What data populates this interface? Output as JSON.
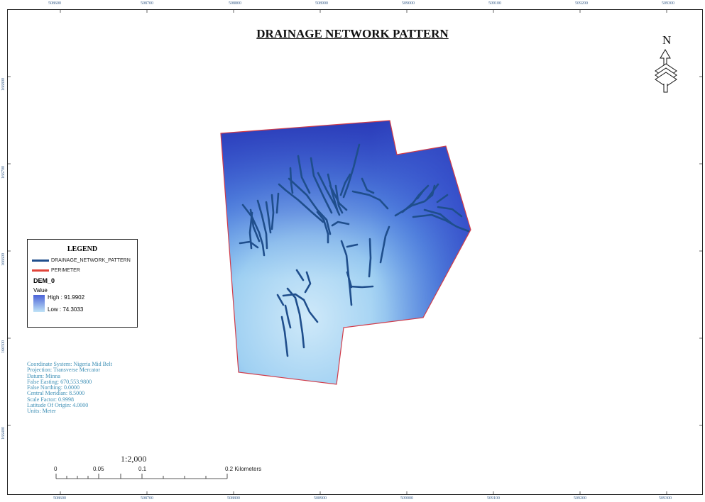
{
  "title": "DRAINAGE NETWORK PATTERN",
  "grid": {
    "top_labels": [
      "508600",
      "508700",
      "508800",
      "508900",
      "509000",
      "509100",
      "509200",
      "509300"
    ],
    "bottom_labels": [
      "508600",
      "508700",
      "508800",
      "508900",
      "509000",
      "509100",
      "509200",
      "509300"
    ],
    "left_labels": [
      "166800",
      "166700",
      "166600",
      "166500",
      "166400"
    ]
  },
  "legend": {
    "title": "LEGEND",
    "drainage_label": "DRAINAGE_NETWORK_PATTERN",
    "perimeter_label": "PERIMETER",
    "layer": "DEM_0",
    "value_label": "Value",
    "high": "High : 91.9902",
    "low": "Low : 74.3033",
    "colors": {
      "drainage": "#1f4e8c",
      "perimeter": "#e0443a",
      "high": "#4b63d8",
      "low": "#bfe3f7"
    }
  },
  "coordinate_info": [
    "Coordinate System: Nigeria Mid Belt",
    "Projection: Transverse Mercator",
    "Datum: Minna",
    "False Easting: 670,553.9800",
    "False Northing: 0.0000",
    "Central Meridian: 8.5000",
    "Scale Factor: 0.9998",
    "Latitude Of Origin: 4.0000",
    "Units: Meter"
  ],
  "scale": {
    "ratio": "1:2,000",
    "labels": [
      "0",
      "0.05",
      "0.1",
      "0.2 Kilometers"
    ]
  },
  "north_arrow": {
    "label": "N",
    "icon": "north-arrow-icon"
  }
}
